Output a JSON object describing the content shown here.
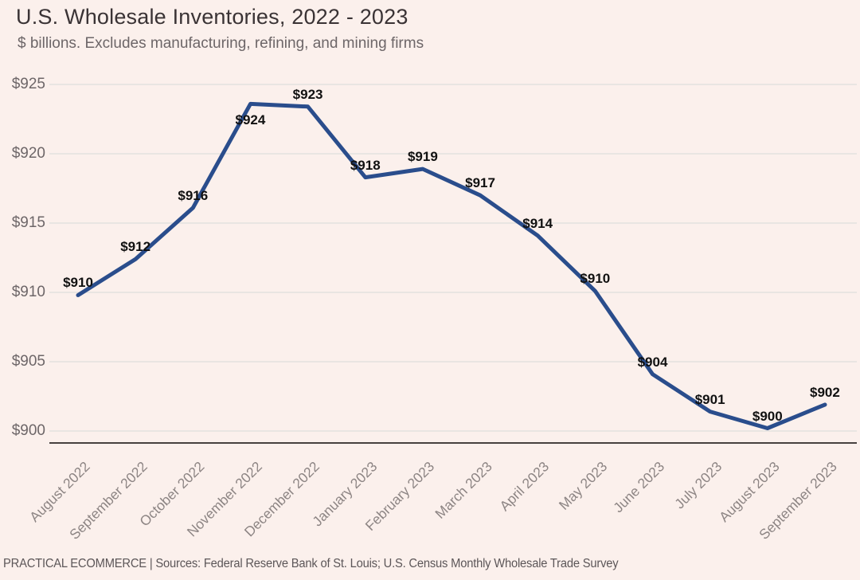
{
  "header": {
    "title": "U.S. Wholesale Inventories, 2022 - 2023",
    "subtitle": "$ billions. Excludes manufacturing, refining, and mining firms"
  },
  "footer": {
    "text": "PRACTICAL ECOMMERCE | Sources: Federal Reserve Bank of St. Louis; U.S. Census Monthly Wholesale Trade Survey"
  },
  "chart_data": {
    "type": "line",
    "title": "U.S. Wholesale Inventories, 2022 - 2023",
    "subtitle": "$ billions. Excludes manufacturing, refining, and mining firms",
    "categories": [
      "August 2022",
      "September 2022",
      "October 2022",
      "November 2022",
      "December 2022",
      "January 2023",
      "February 2023",
      "March 2023",
      "April 2023",
      "May 2023",
      "June 2023",
      "July 2023",
      "August 2023",
      "September 2023"
    ],
    "values": [
      910,
      912,
      916,
      924,
      923,
      918,
      919,
      917,
      914,
      910,
      904,
      901,
      900,
      902
    ],
    "plot_values": [
      909.8,
      912.4,
      916.1,
      923.6,
      923.4,
      918.3,
      918.9,
      917.0,
      914.1,
      910.1,
      904.1,
      901.4,
      900.2,
      901.9
    ],
    "point_labels": [
      "$910",
      "$912",
      "$916",
      "$924",
      "$923",
      "$918",
      "$919",
      "$917",
      "$914",
      "$910",
      "$904",
      "$901",
      "$900",
      "$902"
    ],
    "label_below_index": 3,
    "y_ticks": [
      "$925",
      "$920",
      "$915",
      "$910",
      "$905",
      "$900"
    ],
    "y_tick_values": [
      925,
      920,
      915,
      910,
      905,
      900
    ],
    "ylim": [
      899.1,
      925
    ],
    "xlabel": "",
    "ylabel": "",
    "grid": true,
    "legend": "none",
    "x_tick_rotation": -45
  },
  "colors": {
    "background": "#fbf0ec",
    "line": "#2a4d8c",
    "grid": "#e9e5e2",
    "axis": "#47413f",
    "title": "#3a3335",
    "subtitle": "#6d6668",
    "y_tick": "#6d6668",
    "x_tick": "#8d8584",
    "data_label": "#111111",
    "footer": "#5c5658"
  }
}
